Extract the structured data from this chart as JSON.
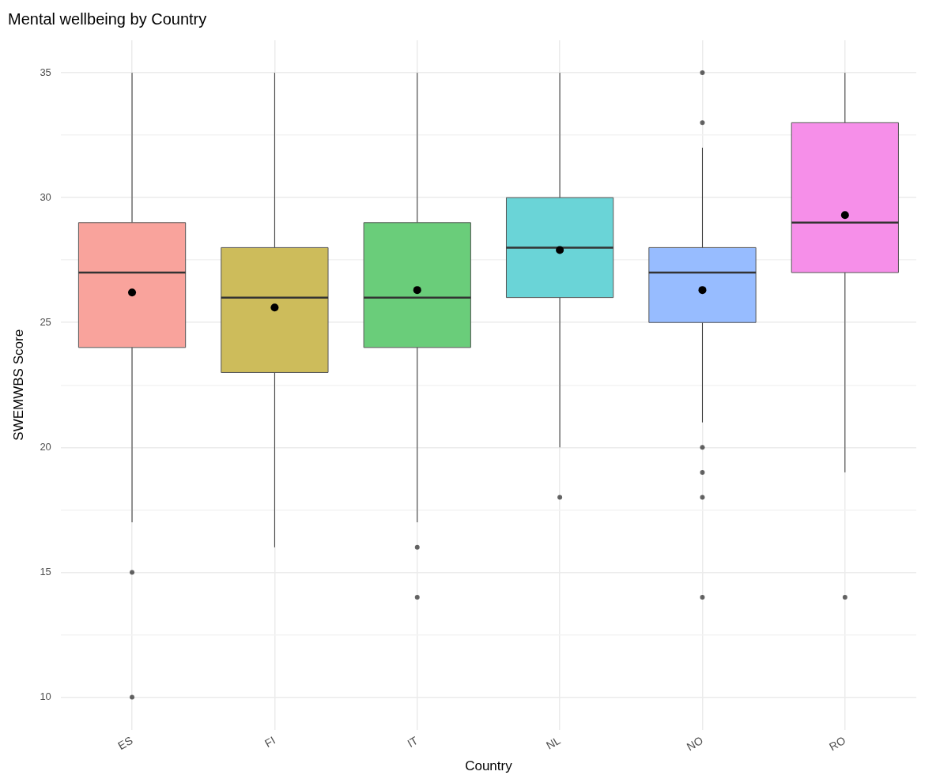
{
  "chart_data": {
    "type": "box",
    "title": "Mental wellbeing by Country",
    "xlabel": "Country",
    "ylabel": "SWEMWBS Score",
    "categories": [
      "ES",
      "FI",
      "IT",
      "NL",
      "NO",
      "RO"
    ],
    "colors": [
      "#f9a39c",
      "#cdbc5b",
      "#6acd7a",
      "#6ad4d7",
      "#97bcff",
      "#f68fe9"
    ],
    "boxes": [
      {
        "low": 17,
        "q1": 24,
        "median": 27,
        "q3": 29,
        "high": 35,
        "mean": 26.2,
        "outliers": [
          15,
          10
        ]
      },
      {
        "low": 16,
        "q1": 23,
        "median": 26,
        "q3": 28,
        "high": 35,
        "mean": 25.6
      },
      {
        "low": 17,
        "q1": 24,
        "median": 26,
        "q3": 29,
        "high": 35,
        "mean": 26.3,
        "outliers": [
          16,
          14
        ]
      },
      {
        "low": 20,
        "q1": 26,
        "median": 28,
        "q3": 30,
        "high": 35,
        "mean": 27.9,
        "outliers": [
          18
        ]
      },
      {
        "low": 21,
        "q1": 25,
        "median": 27,
        "q3": 28,
        "high": 32,
        "mean": 26.3,
        "outliers": [
          35,
          33,
          20,
          19,
          18,
          14
        ]
      },
      {
        "low": 19,
        "q1": 27,
        "median": 29,
        "q3": 33,
        "high": 35,
        "mean": 29.3,
        "outliers": [
          14
        ]
      }
    ],
    "ylim": [
      8.7,
      36.3
    ],
    "yticks": [
      10,
      {
        "value": 12.5,
        "label": null
      },
      15,
      {
        "value": 17.5,
        "label": null
      },
      20,
      {
        "value": 22.5,
        "label": null
      },
      25,
      {
        "value": 27.5,
        "label": null
      },
      30,
      {
        "value": 32.5,
        "label": null
      },
      35
    ],
    "grid": true
  }
}
